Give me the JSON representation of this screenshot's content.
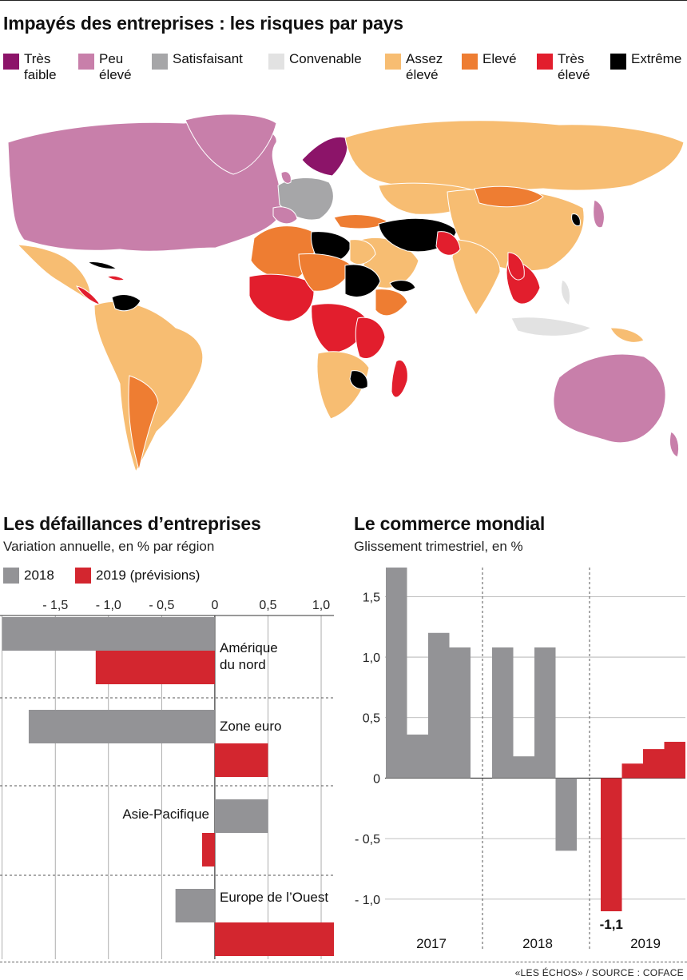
{
  "map": {
    "title": "Impayés des entreprises : les risques par pays",
    "legend": [
      {
        "label": "Très\nfaible",
        "color": "#8c1469"
      },
      {
        "label": "Peu\nélevé",
        "color": "#c87faa"
      },
      {
        "label": "Satisfaisant",
        "color": "#a6a6a8"
      },
      {
        "label": "Convenable",
        "color": "#e2e2e2"
      },
      {
        "label": "Assez\nélevé",
        "color": "#f7bd72"
      },
      {
        "label": "Elevé",
        "color": "#ee7d32"
      },
      {
        "label": "Très\nélevé",
        "color": "#e21e2d"
      },
      {
        "label": "Extrême",
        "color": "#000000"
      }
    ]
  },
  "chart_data": [
    {
      "type": "bar",
      "orientation": "horizontal",
      "title": "Les défaillances d’entreprises",
      "subtitle": "Variation annuelle, en % par région",
      "categories": [
        "Amérique\ndu nord",
        "Zone euro",
        "Asie-Pacifique",
        "Europe de l’Ouest"
      ],
      "series": [
        {
          "name": "2018",
          "color": "#939396",
          "values": [
            -2.0,
            -1.75,
            0.5,
            -0.37
          ]
        },
        {
          "name": "2019",
          "name_suffix": "(prévisions)",
          "color": "#d3262f",
          "values": [
            -1.12,
            0.5,
            -0.12,
            1.12
          ]
        }
      ],
      "xlim": [
        -2.02,
        1.12
      ],
      "ticks": [
        {
          "value": -1.5,
          "label": "- 1,5"
        },
        {
          "value": -1.0,
          "label": "- 1,0"
        },
        {
          "value": -0.5,
          "label": "- 0,5"
        },
        {
          "value": 0,
          "label": "0"
        },
        {
          "value": 0.5,
          "label": "0,5"
        },
        {
          "value": 1.0,
          "label": "1,0"
        }
      ],
      "grid": true
    },
    {
      "type": "bar",
      "title": "Le commerce mondial",
      "subtitle": "Glissement trimestriel, en %",
      "groups": [
        "2017",
        "2018",
        "2019"
      ],
      "series": [
        {
          "name": "2017",
          "color": "#939396",
          "values": [
            1.74,
            0.36,
            1.2,
            1.08
          ]
        },
        {
          "name": "2018",
          "color": "#939396",
          "values": [
            1.08,
            0.18,
            1.08,
            -0.6
          ]
        },
        {
          "name": "2019",
          "color": "#d3262f",
          "values": [
            -1.1,
            0.12,
            0.24,
            0.3
          ]
        }
      ],
      "ylim": [
        -1.1,
        1.74
      ],
      "ticks": [
        {
          "value": 1.5,
          "label": "1,5"
        },
        {
          "value": 1.0,
          "label": "1,0"
        },
        {
          "value": 0.5,
          "label": "0,5"
        },
        {
          "value": 0,
          "label": "0"
        },
        {
          "value": -0.5,
          "label": "- 0,5"
        },
        {
          "value": -1.0,
          "label": "- 1,0"
        }
      ],
      "annotation": "-1,1",
      "grid": true
    }
  ],
  "source": "«LES ÉCHOS» / SOURCE : COFACE"
}
